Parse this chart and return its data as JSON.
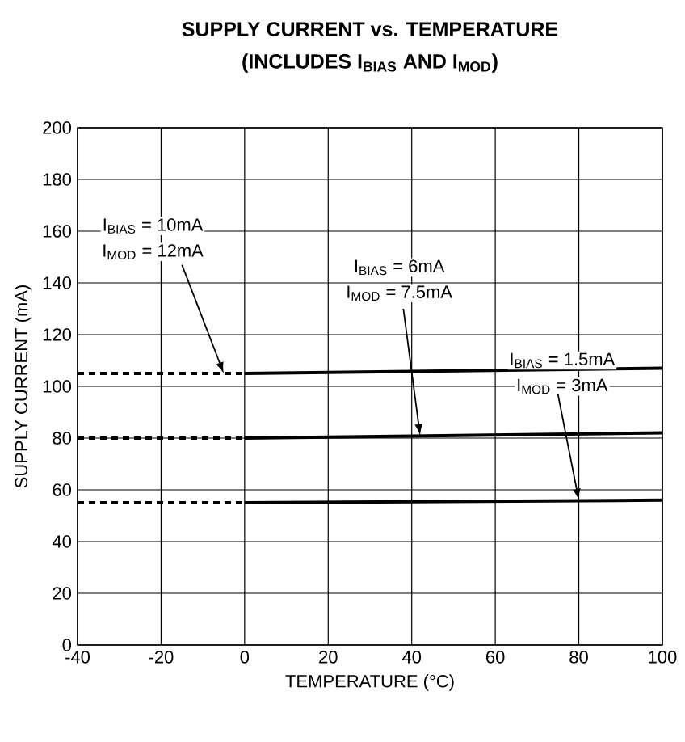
{
  "chart_data": {
    "type": "line",
    "title": "SUPPLY CURRENT vs. TEMPERATURE",
    "subtitle": "(INCLUDES I$_{BIAS}$ AND I$_{MOD}$)",
    "xlabel": "TEMPERATURE (°C)",
    "ylabel": "SUPPLY CURRENT (mA)",
    "xlim": [
      -40,
      100
    ],
    "ylim": [
      0,
      200
    ],
    "xticks": [
      -40,
      -20,
      0,
      20,
      40,
      60,
      80,
      100
    ],
    "yticks": [
      0,
      20,
      40,
      60,
      80,
      100,
      120,
      140,
      160,
      180,
      200
    ],
    "grid": true,
    "series": [
      {
        "color": "#000000",
        "line_style": "dashed",
        "x": [
          -40,
          0
        ],
        "values": [
          105,
          105
        ]
      },
      {
        "color": "#000000",
        "line_style": "solid",
        "x": [
          0,
          50,
          100
        ],
        "values": [
          105,
          106,
          107
        ]
      },
      {
        "color": "#000000",
        "line_style": "dashed",
        "x": [
          -40,
          0
        ],
        "values": [
          80,
          80
        ]
      },
      {
        "color": "#000000",
        "line_style": "solid",
        "x": [
          0,
          50,
          100
        ],
        "values": [
          80,
          81,
          82
        ]
      },
      {
        "color": "#000000",
        "line_style": "dashed",
        "x": [
          -40,
          0
        ],
        "values": [
          55,
          55
        ]
      },
      {
        "color": "#000000",
        "line_style": "solid",
        "x": [
          0,
          50,
          100
        ],
        "values": [
          55,
          55.5,
          56
        ]
      }
    ],
    "annotations": [
      "I$_{BIAS}$ = 10mA",
      {
        "text": "I$_{MOD}$ = 12mA",
        "x": -5,
        "y": 105
      },
      "I$_{BIAS}$ = 6mA",
      {
        "text": "I$_{MOD}$ = 7.5mA",
        "x": 42,
        "y": 81
      },
      "I$_{BIAS}$ = 1.5mA",
      {
        "text": "I$_{MOD}$ = 3mA",
        "x": 80,
        "y": 56
      }
    ]
  }
}
